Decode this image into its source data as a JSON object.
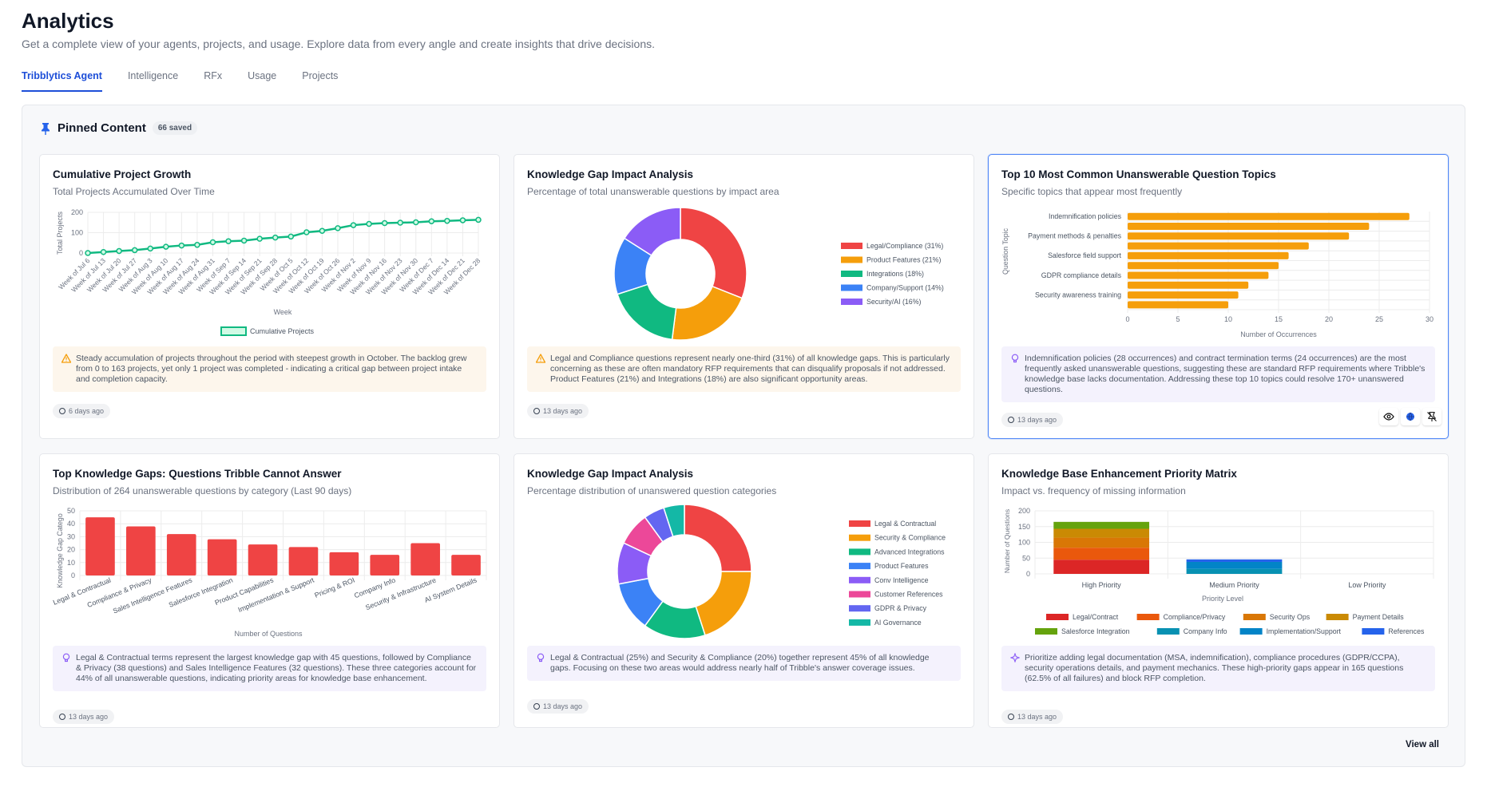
{
  "header": {
    "title": "Analytics",
    "subtitle": "Get a complete view of your agents, projects, and usage. Explore data from every angle and create insights that drive decisions."
  },
  "tabs": [
    {
      "label": "Tribblytics Agent",
      "active": true
    },
    {
      "label": "Intelligence"
    },
    {
      "label": "RFx"
    },
    {
      "label": "Usage"
    },
    {
      "label": "Projects"
    }
  ],
  "pinned": {
    "title": "Pinned Content",
    "count": "66 saved",
    "view_all": "View all"
  },
  "colors": {
    "accent": "#1d4ed8",
    "warning": "#f59e0b",
    "tip": "#8b5cf6"
  },
  "cards": [
    {
      "title": "Cumulative Project Growth",
      "subtitle": "Total Projects Accumulated Over Time",
      "insight": {
        "type": "warning",
        "icon": "warning-icon",
        "text": "Steady accumulation of projects throughout the period with steepest growth in October. The backlog grew from 0 to 163 projects, yet only 1 project was completed - indicating a critical gap between project intake and completion capacity."
      },
      "timestamp": "6 days ago"
    },
    {
      "title": "Knowledge Gap Impact Analysis",
      "subtitle": "Percentage of total unanswerable questions by impact area",
      "insight": {
        "type": "warning",
        "icon": "warning-icon",
        "text": "Legal and Compliance questions represent nearly one-third (31%) of all knowledge gaps. This is particularly concerning as these are often mandatory RFP requirements that can disqualify proposals if not addressed. Product Features (21%) and Integrations (18%) are also significant opportunity areas."
      },
      "timestamp": "13 days ago"
    },
    {
      "title": "Top 10 Most Common Unanswerable Question Topics",
      "subtitle": "Specific topics that appear most frequently",
      "insight": {
        "type": "tip",
        "icon": "lightbulb-icon",
        "text": "Indemnification policies (28 occurrences) and contract termination terms (24 occurrences) are the most frequently asked unanswerable questions, suggesting these are standard RFP requirements where Tribble's knowledge base lacks documentation. Addressing these top 10 topics could resolve 170+ unanswered questions."
      },
      "timestamp": "13 days ago",
      "selected": true,
      "actions": [
        "eye-icon",
        "globe-icon",
        "unpin-icon"
      ]
    },
    {
      "title": "Top Knowledge Gaps: Questions Tribble Cannot Answer",
      "subtitle": "Distribution of 264 unanswerable questions by category (Last 90 days)",
      "insight": {
        "type": "tip",
        "icon": "lightbulb-icon",
        "text": "Legal & Contractual terms represent the largest knowledge gap with 45 questions, followed by Compliance & Privacy (38 questions) and Sales Intelligence Features (32 questions). These three categories account for 44% of all unanswerable questions, indicating priority areas for knowledge base enhancement."
      },
      "timestamp": "13 days ago"
    },
    {
      "title": "Knowledge Gap Impact Analysis",
      "subtitle": "Percentage distribution of unanswered question categories",
      "insight": {
        "type": "tip",
        "icon": "lightbulb-icon",
        "text": "Legal & Contractual (25%) and Security & Compliance (20%) together represent 45% of all knowledge gaps. Focusing on these two areas would address nearly half of Tribble's answer coverage issues."
      },
      "timestamp": "13 days ago"
    },
    {
      "title": "Knowledge Base Enhancement Priority Matrix",
      "subtitle": "Impact vs. frequency of missing information",
      "insight": {
        "type": "tip",
        "icon": "sparkle-icon",
        "text": "Prioritize adding legal documentation (MSA, indemnification), compliance procedures (GDPR/CCPA), security operations details, and payment mechanics. These high-priority gaps appear in 165 questions (62.5% of all failures) and block RFP completion."
      },
      "timestamp": "13 days ago"
    }
  ],
  "chart_data": [
    {
      "type": "line",
      "xlabel": "Week",
      "ylabel": "Total Projects",
      "ylim": [
        0,
        200
      ],
      "yticks": [
        "0",
        "100",
        "200"
      ],
      "grid": true,
      "legend": "bottom",
      "categories": [
        "Week of Jul 6",
        "Week of Jul 13",
        "Week of Jul 20",
        "Week of Jul 27",
        "Week of Aug 3",
        "Week of Aug 10",
        "Week of Aug 17",
        "Week of Aug 24",
        "Week of Aug 31",
        "Week of Sep 7",
        "Week of Sep 14",
        "Week of Sep 21",
        "Week of Sep 28",
        "Week of Oct 5",
        "Week of Oct 12",
        "Week of Oct 19",
        "Week of Oct 26",
        "Week of Nov 2",
        "Week of Nov 9",
        "Week of Nov 16",
        "Week of Nov 23",
        "Week of Nov 30",
        "Week of Dec 7",
        "Week of Dec 14",
        "Week of Dec 21",
        "Week of Dec 28"
      ],
      "series": [
        {
          "name": "Cumulative Projects",
          "color": "#10b981",
          "values": [
            0,
            5,
            10,
            14,
            22,
            31,
            37,
            40,
            53,
            58,
            61,
            70,
            76,
            81,
            102,
            109,
            122,
            137,
            143,
            147,
            149,
            151,
            156,
            158,
            161,
            163
          ]
        }
      ]
    },
    {
      "type": "pie",
      "donut": true,
      "legend": "right",
      "labels": [
        "Legal/Compliance (31%)",
        "Product Features (21%)",
        "Integrations (18%)",
        "Company/Support (14%)",
        "Security/AI (16%)"
      ],
      "values": [
        31,
        21,
        18,
        14,
        16
      ],
      "colors": [
        "#ef4444",
        "#f59e0b",
        "#10b981",
        "#3b82f6",
        "#8b5cf6"
      ]
    },
    {
      "type": "bar",
      "orientation": "horizontal",
      "xlabel": "Number of Occurrences",
      "ylabel": "Question Topic",
      "xlim": [
        0,
        30
      ],
      "xticks": [
        "0",
        "5",
        "10",
        "15",
        "20",
        "25",
        "30"
      ],
      "grid": true,
      "color": "#f59e0b",
      "categories": [
        "Indemnification policies",
        "",
        "Payment methods & penalties",
        "",
        "Salesforce field support",
        "",
        "GDPR compliance details",
        "",
        "Security awareness training",
        ""
      ],
      "values": [
        28,
        24,
        22,
        18,
        16,
        15,
        14,
        12,
        11,
        10
      ]
    },
    {
      "type": "bar",
      "xlabel": "Number of Questions",
      "ylabel": "Knowledge Gap Catego",
      "ylim": [
        0,
        50
      ],
      "yticks": [
        "0",
        "10",
        "20",
        "30",
        "40",
        "50"
      ],
      "grid": true,
      "color": "#ef4444",
      "categories": [
        "Legal & Contractual",
        "Compliance & Privacy",
        "Sales Intelligence Features",
        "Salesforce Integration",
        "Product Capabilities",
        "Implementation & Support",
        "Pricing & ROI",
        "Company Info",
        "Security & Infrastructure",
        "AI System Details"
      ],
      "values": [
        45,
        38,
        32,
        28,
        24,
        22,
        18,
        16,
        25,
        16
      ]
    },
    {
      "type": "pie",
      "donut": true,
      "legend": "right",
      "labels": [
        "Legal & Contractual",
        "Security & Compliance",
        "Advanced Integrations",
        "Product Features",
        "Conv Intelligence",
        "Customer References",
        "GDPR & Privacy",
        "AI Governance"
      ],
      "values": [
        25,
        20,
        15,
        12,
        10,
        8,
        5,
        5
      ],
      "colors": [
        "#ef4444",
        "#f59e0b",
        "#10b981",
        "#3b82f6",
        "#8b5cf6",
        "#ec4899",
        "#6366f1",
        "#14b8a6"
      ]
    },
    {
      "type": "bar",
      "stacked": true,
      "xlabel": "Priority Level",
      "ylabel": "Number of Questions",
      "ylim": [
        0,
        200
      ],
      "yticks": [
        "0",
        "50",
        "100",
        "150",
        "200"
      ],
      "grid": true,
      "legend": "bottom",
      "categories": [
        "High Priority",
        "Medium Priority",
        "Low Priority"
      ],
      "series": [
        {
          "name": "Legal/Contract",
          "color": "#dc2626",
          "values": [
            45,
            0,
            0
          ]
        },
        {
          "name": "Compliance/Privacy",
          "color": "#ea580c",
          "values": [
            38,
            0,
            0
          ]
        },
        {
          "name": "Security Ops",
          "color": "#d97706",
          "values": [
            32,
            0,
            0
          ]
        },
        {
          "name": "Payment Details",
          "color": "#ca8a04",
          "values": [
            28,
            0,
            0
          ]
        },
        {
          "name": "Salesforce Integration",
          "color": "#65a30d",
          "values": [
            22,
            0,
            0
          ]
        },
        {
          "name": "Company Info",
          "color": "#0891b2",
          "values": [
            0,
            16,
            0
          ]
        },
        {
          "name": "Implementation/Support",
          "color": "#0284c7",
          "values": [
            0,
            22,
            0
          ]
        },
        {
          "name": "References",
          "color": "#2563eb",
          "values": [
            0,
            8,
            0
          ]
        }
      ]
    }
  ]
}
